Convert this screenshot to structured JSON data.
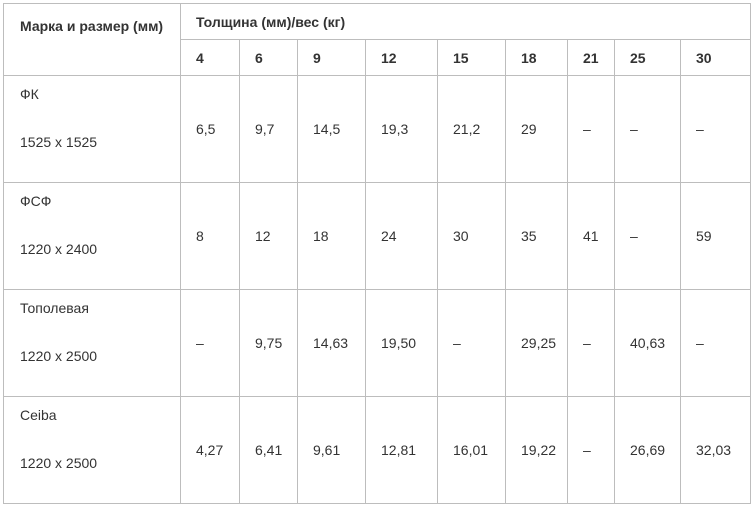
{
  "table": {
    "corner": "Марка и размер (мм)",
    "group": "Толщина (мм)/вес (кг)",
    "columns": [
      "4",
      "6",
      "9",
      "12",
      "15",
      "18",
      "21",
      "25",
      "30"
    ],
    "rows": [
      {
        "name": "ФК",
        "size": "1525 х 1525",
        "values": [
          "6,5",
          "9,7",
          "14,5",
          "19,3",
          "21,2",
          "29",
          "–",
          "–",
          "–"
        ]
      },
      {
        "name": "ФСФ",
        "size": "1220 х 2400",
        "values": [
          "8",
          "12",
          "18",
          "24",
          "30",
          "35",
          "41",
          "–",
          "59"
        ]
      },
      {
        "name": "Тополевая",
        "size": "1220 х 2500",
        "values": [
          "–",
          "9,75",
          "14,63",
          "19,50",
          "–",
          "29,25",
          "–",
          "40,63",
          "–"
        ]
      },
      {
        "name": "Ceiba",
        "size": "1220 х 2500",
        "values": [
          "4,27",
          "6,41",
          "9,61",
          "12,81",
          "16,01",
          "19,22",
          "–",
          "26,69",
          "32,03"
        ]
      }
    ]
  }
}
